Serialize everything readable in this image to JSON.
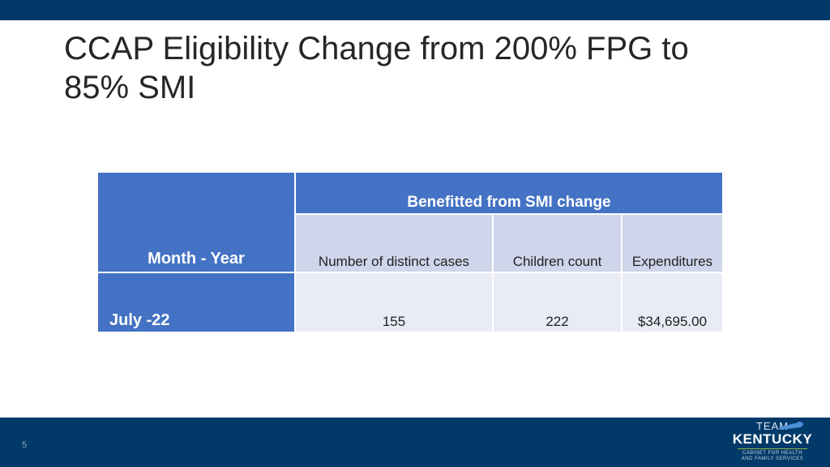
{
  "slide": {
    "title": "CCAP Eligibility Change from 200% FPG to 85% SMI",
    "page_number": "5"
  },
  "table": {
    "month_header": "Month - Year",
    "group_header": "Benefitted from SMI change",
    "sub_headers": [
      "Number of distinct cases",
      "Children count",
      "Expenditures"
    ],
    "rows": [
      {
        "month": "July -22",
        "cases": "155",
        "children": "222",
        "expenditures": "$34,695.00"
      }
    ]
  },
  "logo": {
    "line1": "TEAM",
    "line2": "KENTUCKY",
    "line3": "CABINET FOR HEALTH",
    "line4": "AND FAMILY SERVICES"
  },
  "colors": {
    "banner": "#013a69",
    "header_fill": "#4472c4",
    "subheader_fill": "#cfd5ea",
    "cell_fill": "#e9ebf5"
  }
}
